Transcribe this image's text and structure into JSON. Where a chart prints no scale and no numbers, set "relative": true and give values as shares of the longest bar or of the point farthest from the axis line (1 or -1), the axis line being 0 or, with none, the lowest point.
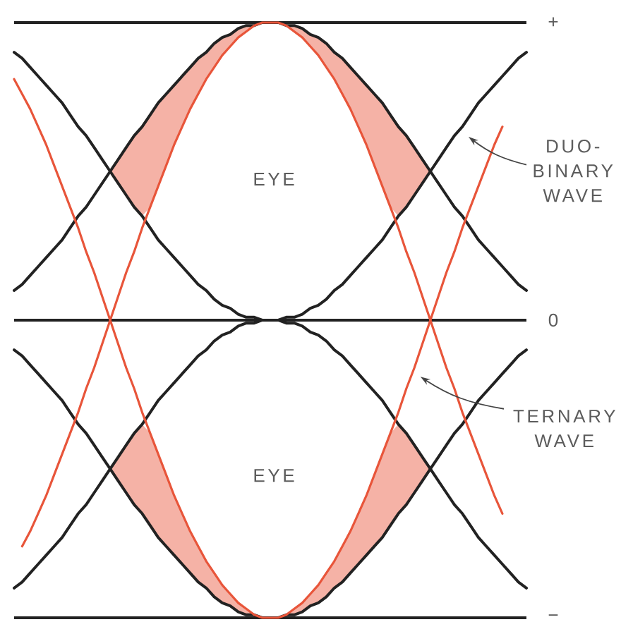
{
  "chart_data": {
    "type": "line",
    "relative": true,
    "categories": [
      null,
      null,
      null,
      null,
      null,
      null,
      null,
      null,
      null,
      null,
      null,
      null,
      null,
      null,
      null,
      null,
      null,
      null,
      null,
      null,
      null,
      null,
      null,
      null,
      null,
      null,
      null,
      null,
      null,
      null,
      null,
      null,
      null,
      null,
      null,
      null,
      null,
      null,
      null,
      null,
      null,
      null,
      null,
      null,
      null,
      null,
      null,
      null,
      null,
      null,
      null,
      null,
      null,
      null,
      null,
      null,
      null,
      null,
      null,
      null,
      null,
      null,
      null,
      null,
      null
    ],
    "ref_lines": [
      {
        "axis": "y",
        "value": 1,
        "label": "+",
        "color": "#222222"
      },
      {
        "axis": "y",
        "value": 0,
        "label": "0",
        "color": "#222222"
      },
      {
        "axis": "y",
        "value": -1,
        "label": "−",
        "color": "#222222"
      }
    ],
    "series": [
      {
        "color": "#222222",
        "values": [
          0.1,
          0.12,
          0.15,
          0.18,
          0.21,
          0.24,
          0.27,
          0.31,
          0.35,
          0.38,
          0.42,
          0.46,
          0.5,
          0.54,
          0.58,
          0.62,
          0.65,
          0.69,
          0.73,
          0.76,
          0.79,
          0.82,
          0.85,
          0.88,
          0.9,
          0.93,
          0.95,
          0.96,
          0.98,
          0.99,
          0.99,
          1,
          1,
          1,
          0.99,
          0.99,
          0.98,
          0.96,
          0.95,
          0.93,
          0.9,
          0.88,
          0.85,
          0.82,
          0.79,
          0.76,
          0.73,
          0.69,
          0.65,
          0.62,
          0.58,
          0.54,
          0.5,
          0.46,
          0.42,
          0.38,
          0.35,
          0.31,
          0.27,
          0.24,
          0.21,
          0.18,
          0.15,
          0.12,
          0.1
        ]
      },
      {
        "color": "#222222",
        "values": [
          0.9,
          0.88,
          0.85,
          0.82,
          0.79,
          0.76,
          0.73,
          0.69,
          0.65,
          0.62,
          0.58,
          0.54,
          0.5,
          0.46,
          0.42,
          0.38,
          0.35,
          0.31,
          0.27,
          0.24,
          0.21,
          0.18,
          0.15,
          0.12,
          0.1,
          0.07,
          0.05,
          0.04,
          0.02,
          0.01,
          0.01,
          0,
          0,
          0,
          0.01,
          0.01,
          0.02,
          0.04,
          0.05,
          0.07,
          0.1,
          0.12,
          0.15,
          0.18,
          0.21,
          0.24,
          0.27,
          0.31,
          0.35,
          0.38,
          0.42,
          0.46,
          0.5,
          0.54,
          0.58,
          0.62,
          0.65,
          0.69,
          0.73,
          0.76,
          0.79,
          0.82,
          0.85,
          0.88,
          0.9
        ]
      },
      {
        "color": "#222222",
        "values": [
          -0.9,
          -0.88,
          -0.85,
          -0.82,
          -0.79,
          -0.76,
          -0.73,
          -0.69,
          -0.65,
          -0.62,
          -0.58,
          -0.54,
          -0.5,
          -0.46,
          -0.42,
          -0.38,
          -0.35,
          -0.31,
          -0.27,
          -0.24,
          -0.21,
          -0.18,
          -0.15,
          -0.12,
          -0.1,
          -0.07,
          -0.05,
          -0.04,
          -0.02,
          -0.01,
          -0.01,
          0,
          0,
          0,
          -0.01,
          -0.01,
          -0.02,
          -0.04,
          -0.05,
          -0.07,
          -0.1,
          -0.12,
          -0.15,
          -0.18,
          -0.21,
          -0.24,
          -0.27,
          -0.31,
          -0.35,
          -0.38,
          -0.42,
          -0.46,
          -0.5,
          -0.54,
          -0.58,
          -0.62,
          -0.65,
          -0.69,
          -0.73,
          -0.76,
          -0.79,
          -0.82,
          -0.85,
          -0.88,
          -0.9
        ]
      },
      {
        "color": "#222222",
        "values": [
          -0.1,
          -0.12,
          -0.15,
          -0.18,
          -0.21,
          -0.24,
          -0.27,
          -0.31,
          -0.35,
          -0.38,
          -0.42,
          -0.46,
          -0.5,
          -0.54,
          -0.58,
          -0.62,
          -0.65,
          -0.69,
          -0.73,
          -0.76,
          -0.79,
          -0.82,
          -0.85,
          -0.88,
          -0.9,
          -0.93,
          -0.95,
          -0.96,
          -0.98,
          -0.99,
          -0.99,
          -1,
          -1,
          -1,
          -0.99,
          -0.99,
          -0.98,
          -0.96,
          -0.95,
          -0.93,
          -0.9,
          -0.88,
          -0.85,
          -0.82,
          -0.79,
          -0.76,
          -0.73,
          -0.69,
          -0.65,
          -0.62,
          -0.58,
          -0.54,
          -0.5,
          -0.46,
          -0.42,
          -0.38,
          -0.35,
          -0.31,
          -0.27,
          -0.24,
          -0.21,
          -0.18,
          -0.15,
          -0.12,
          -0.1
        ]
      },
      {
        "color": "#e8553a",
        "values": [
          null,
          -0.76,
          -0.71,
          -0.65,
          -0.59,
          -0.52,
          -0.45,
          -0.38,
          -0.31,
          -0.23,
          -0.16,
          -0.08,
          0,
          0.08,
          0.16,
          0.23,
          0.31,
          0.38,
          0.45,
          0.52,
          0.59,
          0.65,
          0.71,
          0.76,
          0.81,
          0.85,
          0.89,
          0.92,
          0.95,
          0.97,
          0.99,
          1,
          1,
          1,
          0.99,
          0.97,
          0.95,
          0.92,
          0.89,
          0.85,
          0.81,
          0.76,
          0.71,
          0.65,
          0.59,
          0.52,
          0.45,
          0.38,
          0.31,
          0.23,
          0.16,
          0.08,
          0,
          -0.08,
          -0.16,
          -0.23,
          -0.31,
          -0.38,
          -0.45,
          -0.52,
          -0.59,
          -0.65,
          null,
          null,
          null
        ],
        "lower": [
          null,
          null,
          null,
          null,
          null,
          null,
          null,
          null,
          null,
          null,
          null,
          null,
          0.5,
          0.46,
          0.42,
          0.38,
          0.35,
          0.38,
          0.454,
          0.52,
          0.59,
          0.65,
          0.71,
          0.76,
          0.81,
          0.85,
          0.89,
          0.92,
          0.95,
          0.97,
          0.99,
          1,
          1,
          1,
          0.99,
          0.97,
          0.95,
          0.92,
          0.89,
          0.85,
          0.81,
          0.76,
          0.71,
          0.65,
          0.59,
          0.52,
          0.45,
          0.38,
          0.35,
          0.38,
          0.42,
          0.46,
          0.5,
          null,
          null,
          null,
          null,
          null,
          null,
          null,
          null,
          null,
          null,
          null,
          null
        ],
        "upper": [
          null,
          null,
          null,
          null,
          null,
          null,
          null,
          null,
          null,
          null,
          null,
          null,
          0.5,
          0.54,
          0.58,
          0.62,
          0.65,
          0.69,
          0.73,
          0.76,
          0.79,
          0.82,
          0.85,
          0.88,
          0.9,
          0.93,
          0.95,
          0.96,
          0.98,
          0.99,
          0.99,
          1,
          1,
          1,
          0.99,
          0.99,
          0.98,
          0.96,
          0.95,
          0.93,
          0.9,
          0.88,
          0.85,
          0.82,
          0.79,
          0.76,
          0.73,
          0.69,
          0.65,
          0.62,
          0.58,
          0.54,
          0.5,
          null,
          null,
          null,
          null,
          null,
          null,
          null,
          null,
          null,
          null,
          null,
          null
        ]
      },
      {
        "color": "#e8553a",
        "values": [
          0.81,
          0.76,
          0.71,
          0.65,
          0.59,
          0.52,
          0.45,
          0.38,
          0.31,
          0.23,
          0.16,
          0.08,
          0,
          -0.08,
          -0.16,
          -0.23,
          -0.31,
          -0.38,
          -0.45,
          -0.52,
          -0.59,
          -0.65,
          -0.71,
          -0.76,
          -0.81,
          -0.85,
          -0.89,
          -0.92,
          -0.95,
          -0.97,
          -0.99,
          -1,
          -1,
          -1,
          -0.99,
          -0.97,
          -0.95,
          -0.92,
          -0.89,
          -0.85,
          -0.81,
          -0.76,
          -0.71,
          -0.65,
          -0.59,
          -0.52,
          -0.45,
          -0.38,
          -0.31,
          -0.23,
          -0.16,
          -0.08,
          0,
          0.08,
          0.16,
          0.23,
          0.31,
          0.38,
          0.45,
          0.52,
          0.59,
          0.65,
          null,
          null,
          null
        ],
        "lower": [
          null,
          null,
          null,
          null,
          null,
          null,
          null,
          null,
          null,
          null,
          null,
          null,
          -0.5,
          -0.54,
          -0.58,
          -0.62,
          -0.65,
          -0.69,
          -0.73,
          -0.76,
          -0.79,
          -0.82,
          -0.85,
          -0.88,
          -0.9,
          -0.93,
          -0.95,
          -0.96,
          -0.98,
          -0.99,
          -0.99,
          -1,
          -1,
          -1,
          -0.99,
          -0.99,
          -0.98,
          -0.96,
          -0.95,
          -0.93,
          -0.9,
          -0.88,
          -0.85,
          -0.82,
          -0.79,
          -0.76,
          -0.73,
          -0.69,
          -0.65,
          -0.62,
          -0.58,
          -0.54,
          -0.5,
          null,
          null,
          null,
          null,
          null,
          null,
          null,
          null,
          null,
          null,
          null,
          null
        ],
        "upper": [
          null,
          null,
          null,
          null,
          null,
          null,
          null,
          null,
          null,
          null,
          null,
          null,
          -0.5,
          -0.46,
          -0.42,
          -0.38,
          -0.35,
          -0.38,
          -0.454,
          -0.52,
          -0.59,
          -0.65,
          -0.71,
          -0.76,
          -0.81,
          -0.85,
          -0.89,
          -0.92,
          -0.95,
          -0.97,
          -0.99,
          -1,
          -1,
          -1,
          -0.99,
          -0.97,
          -0.95,
          -0.92,
          -0.89,
          -0.85,
          -0.81,
          -0.76,
          -0.71,
          -0.65,
          -0.59,
          -0.52,
          -0.45,
          -0.38,
          -0.35,
          -0.38,
          -0.42,
          -0.46,
          -0.5,
          null,
          null,
          null,
          null,
          null,
          null,
          null,
          null,
          null,
          null,
          null,
          null
        ]
      }
    ],
    "annotations": [
      "EYE",
      "EYE",
      "DUO-BINARY WAVE",
      "TERNARY WAVE"
    ]
  }
}
